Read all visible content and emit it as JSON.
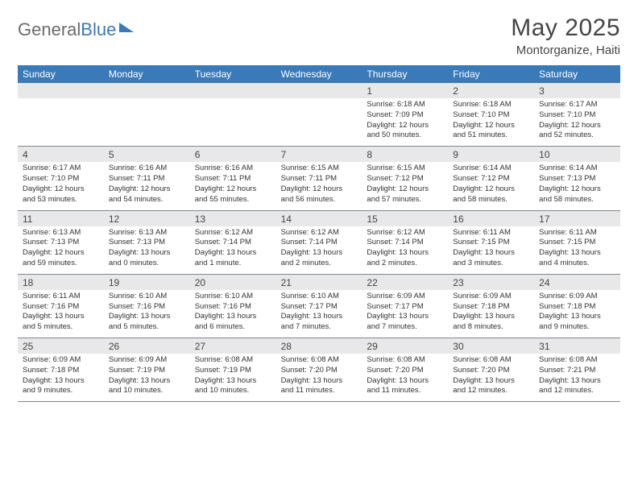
{
  "logo": {
    "part1": "General",
    "part2": "Blue"
  },
  "title": "May 2025",
  "location": "Montorganize, Haiti",
  "weekdays": [
    "Sunday",
    "Monday",
    "Tuesday",
    "Wednesday",
    "Thursday",
    "Friday",
    "Saturday"
  ],
  "colors": {
    "header_bg": "#3a7ab8",
    "header_text": "#ffffff",
    "daynum_bg": "#e8e8e8",
    "border": "#808890",
    "text": "#333333",
    "title_text": "#454545",
    "logo_gray": "#6b6b6b",
    "logo_blue": "#3a7ab8"
  },
  "weeks": [
    [
      {
        "n": "",
        "sr": "",
        "ss": "",
        "dl": ""
      },
      {
        "n": "",
        "sr": "",
        "ss": "",
        "dl": ""
      },
      {
        "n": "",
        "sr": "",
        "ss": "",
        "dl": ""
      },
      {
        "n": "",
        "sr": "",
        "ss": "",
        "dl": ""
      },
      {
        "n": "1",
        "sr": "Sunrise: 6:18 AM",
        "ss": "Sunset: 7:09 PM",
        "dl": "Daylight: 12 hours and 50 minutes."
      },
      {
        "n": "2",
        "sr": "Sunrise: 6:18 AM",
        "ss": "Sunset: 7:10 PM",
        "dl": "Daylight: 12 hours and 51 minutes."
      },
      {
        "n": "3",
        "sr": "Sunrise: 6:17 AM",
        "ss": "Sunset: 7:10 PM",
        "dl": "Daylight: 12 hours and 52 minutes."
      }
    ],
    [
      {
        "n": "4",
        "sr": "Sunrise: 6:17 AM",
        "ss": "Sunset: 7:10 PM",
        "dl": "Daylight: 12 hours and 53 minutes."
      },
      {
        "n": "5",
        "sr": "Sunrise: 6:16 AM",
        "ss": "Sunset: 7:11 PM",
        "dl": "Daylight: 12 hours and 54 minutes."
      },
      {
        "n": "6",
        "sr": "Sunrise: 6:16 AM",
        "ss": "Sunset: 7:11 PM",
        "dl": "Daylight: 12 hours and 55 minutes."
      },
      {
        "n": "7",
        "sr": "Sunrise: 6:15 AM",
        "ss": "Sunset: 7:11 PM",
        "dl": "Daylight: 12 hours and 56 minutes."
      },
      {
        "n": "8",
        "sr": "Sunrise: 6:15 AM",
        "ss": "Sunset: 7:12 PM",
        "dl": "Daylight: 12 hours and 57 minutes."
      },
      {
        "n": "9",
        "sr": "Sunrise: 6:14 AM",
        "ss": "Sunset: 7:12 PM",
        "dl": "Daylight: 12 hours and 58 minutes."
      },
      {
        "n": "10",
        "sr": "Sunrise: 6:14 AM",
        "ss": "Sunset: 7:13 PM",
        "dl": "Daylight: 12 hours and 58 minutes."
      }
    ],
    [
      {
        "n": "11",
        "sr": "Sunrise: 6:13 AM",
        "ss": "Sunset: 7:13 PM",
        "dl": "Daylight: 12 hours and 59 minutes."
      },
      {
        "n": "12",
        "sr": "Sunrise: 6:13 AM",
        "ss": "Sunset: 7:13 PM",
        "dl": "Daylight: 13 hours and 0 minutes."
      },
      {
        "n": "13",
        "sr": "Sunrise: 6:12 AM",
        "ss": "Sunset: 7:14 PM",
        "dl": "Daylight: 13 hours and 1 minute."
      },
      {
        "n": "14",
        "sr": "Sunrise: 6:12 AM",
        "ss": "Sunset: 7:14 PM",
        "dl": "Daylight: 13 hours and 2 minutes."
      },
      {
        "n": "15",
        "sr": "Sunrise: 6:12 AM",
        "ss": "Sunset: 7:14 PM",
        "dl": "Daylight: 13 hours and 2 minutes."
      },
      {
        "n": "16",
        "sr": "Sunrise: 6:11 AM",
        "ss": "Sunset: 7:15 PM",
        "dl": "Daylight: 13 hours and 3 minutes."
      },
      {
        "n": "17",
        "sr": "Sunrise: 6:11 AM",
        "ss": "Sunset: 7:15 PM",
        "dl": "Daylight: 13 hours and 4 minutes."
      }
    ],
    [
      {
        "n": "18",
        "sr": "Sunrise: 6:11 AM",
        "ss": "Sunset: 7:16 PM",
        "dl": "Daylight: 13 hours and 5 minutes."
      },
      {
        "n": "19",
        "sr": "Sunrise: 6:10 AM",
        "ss": "Sunset: 7:16 PM",
        "dl": "Daylight: 13 hours and 5 minutes."
      },
      {
        "n": "20",
        "sr": "Sunrise: 6:10 AM",
        "ss": "Sunset: 7:16 PM",
        "dl": "Daylight: 13 hours and 6 minutes."
      },
      {
        "n": "21",
        "sr": "Sunrise: 6:10 AM",
        "ss": "Sunset: 7:17 PM",
        "dl": "Daylight: 13 hours and 7 minutes."
      },
      {
        "n": "22",
        "sr": "Sunrise: 6:09 AM",
        "ss": "Sunset: 7:17 PM",
        "dl": "Daylight: 13 hours and 7 minutes."
      },
      {
        "n": "23",
        "sr": "Sunrise: 6:09 AM",
        "ss": "Sunset: 7:18 PM",
        "dl": "Daylight: 13 hours and 8 minutes."
      },
      {
        "n": "24",
        "sr": "Sunrise: 6:09 AM",
        "ss": "Sunset: 7:18 PM",
        "dl": "Daylight: 13 hours and 9 minutes."
      }
    ],
    [
      {
        "n": "25",
        "sr": "Sunrise: 6:09 AM",
        "ss": "Sunset: 7:18 PM",
        "dl": "Daylight: 13 hours and 9 minutes."
      },
      {
        "n": "26",
        "sr": "Sunrise: 6:09 AM",
        "ss": "Sunset: 7:19 PM",
        "dl": "Daylight: 13 hours and 10 minutes."
      },
      {
        "n": "27",
        "sr": "Sunrise: 6:08 AM",
        "ss": "Sunset: 7:19 PM",
        "dl": "Daylight: 13 hours and 10 minutes."
      },
      {
        "n": "28",
        "sr": "Sunrise: 6:08 AM",
        "ss": "Sunset: 7:20 PM",
        "dl": "Daylight: 13 hours and 11 minutes."
      },
      {
        "n": "29",
        "sr": "Sunrise: 6:08 AM",
        "ss": "Sunset: 7:20 PM",
        "dl": "Daylight: 13 hours and 11 minutes."
      },
      {
        "n": "30",
        "sr": "Sunrise: 6:08 AM",
        "ss": "Sunset: 7:20 PM",
        "dl": "Daylight: 13 hours and 12 minutes."
      },
      {
        "n": "31",
        "sr": "Sunrise: 6:08 AM",
        "ss": "Sunset: 7:21 PM",
        "dl": "Daylight: 13 hours and 12 minutes."
      }
    ]
  ]
}
